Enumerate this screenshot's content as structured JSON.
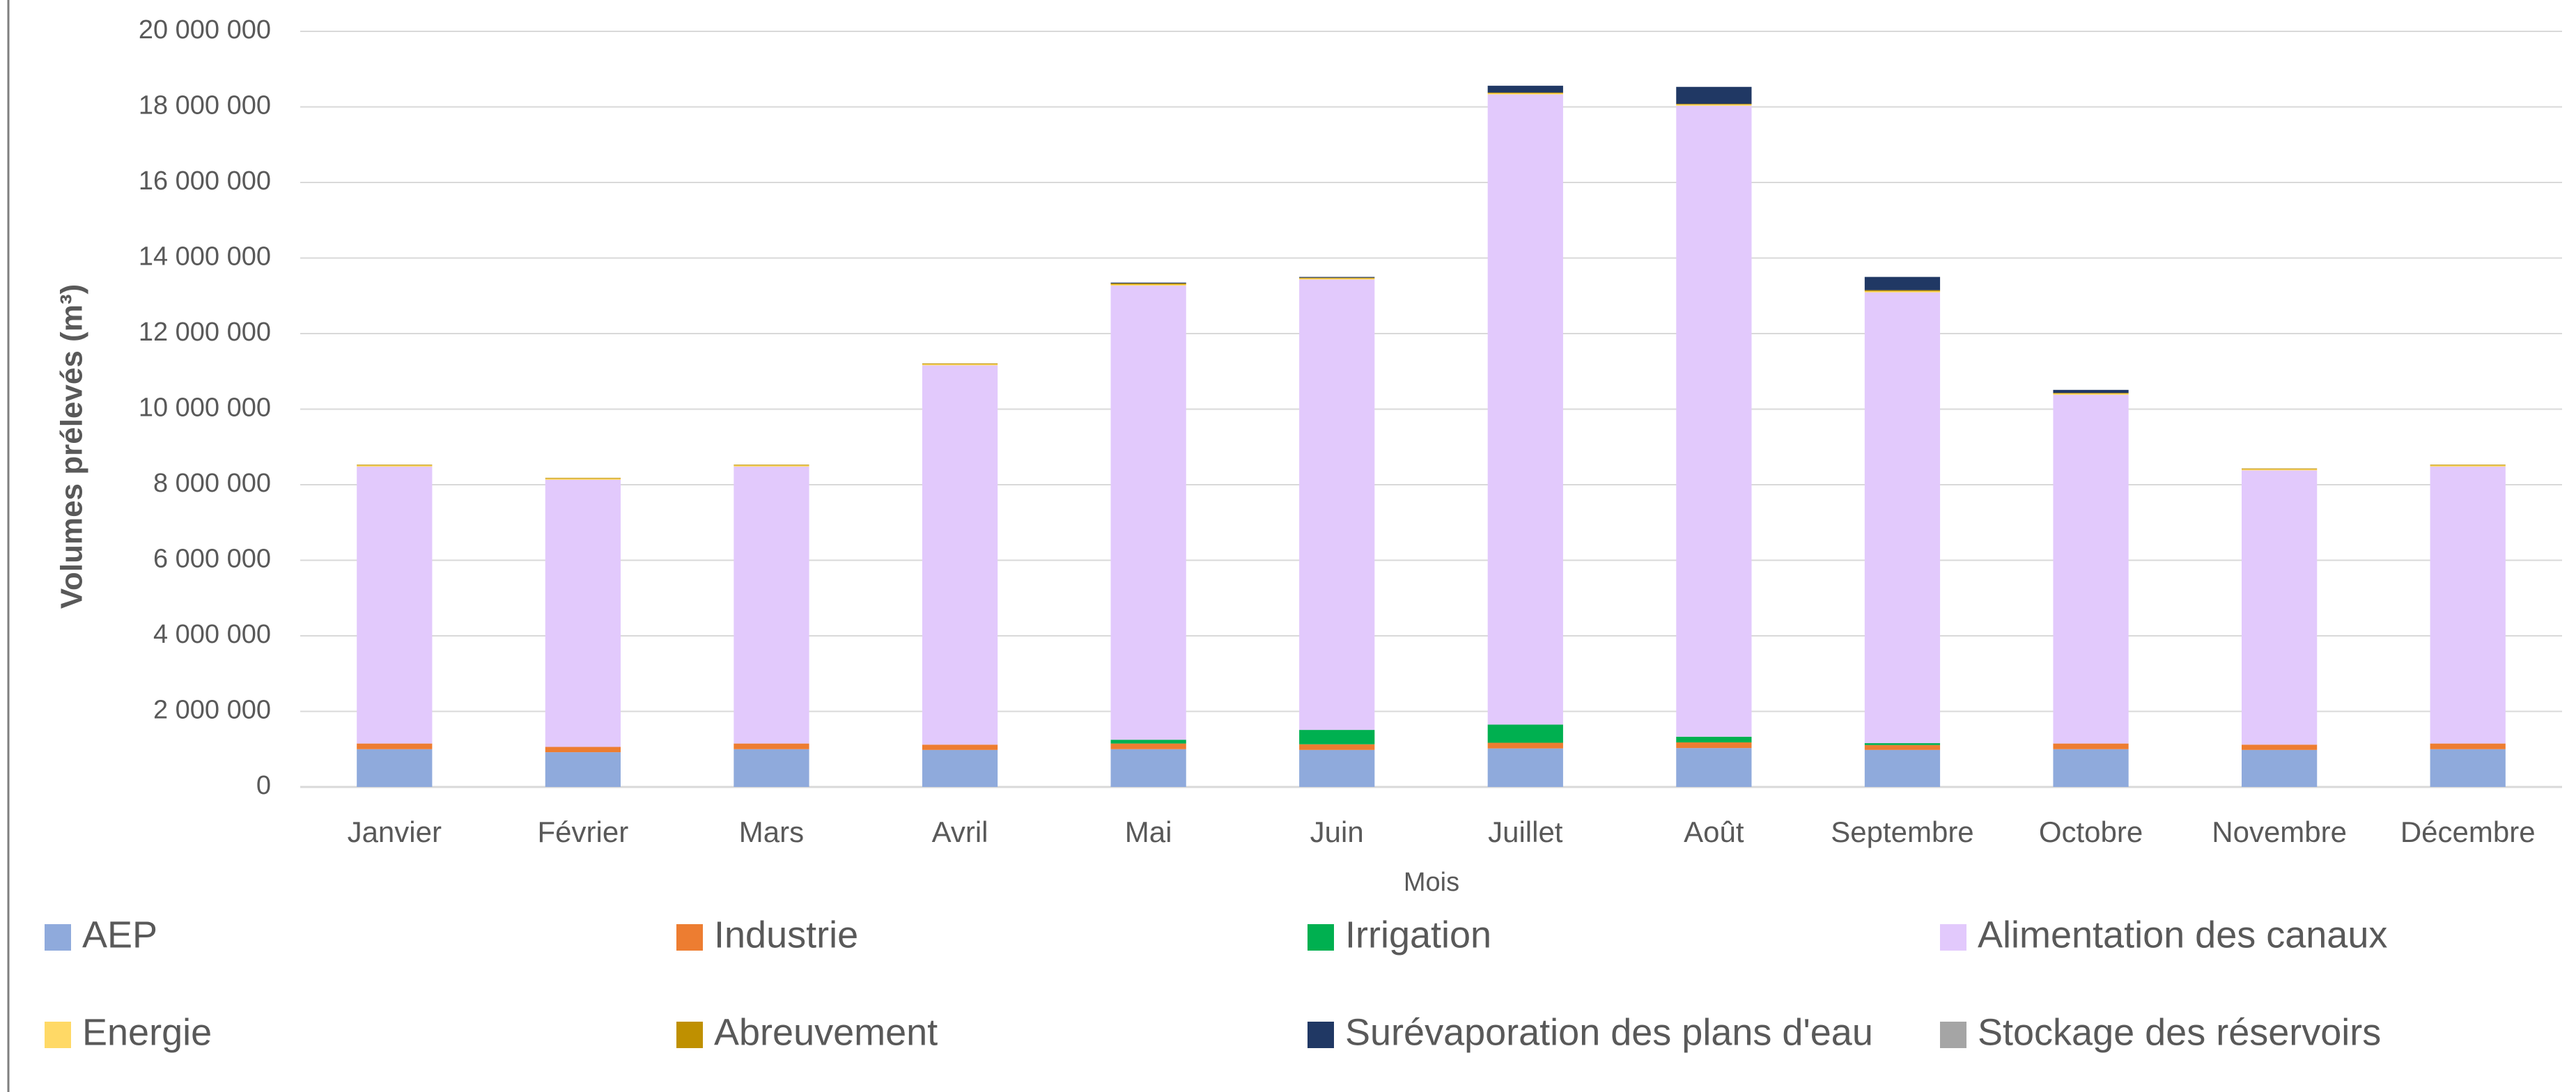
{
  "chart_data": {
    "type": "bar",
    "stacked": true,
    "x_label": "Mois",
    "y_label": "Volumes prélevés (m³)",
    "categories": [
      "Janvier",
      "Février",
      "Mars",
      "Avril",
      "Mai",
      "Juin",
      "Juillet",
      "Août",
      "Septembre",
      "Octobre",
      "Novembre",
      "Décembre"
    ],
    "series": [
      {
        "name": "AEP",
        "color": "#8faadc",
        "values": [
          1000000,
          920000,
          1000000,
          980000,
          1000000,
          980000,
          1020000,
          1030000,
          980000,
          1000000,
          980000,
          1000000
        ]
      },
      {
        "name": "Industrie",
        "color": "#ed7d31",
        "values": [
          150000,
          140000,
          150000,
          140000,
          150000,
          150000,
          150000,
          150000,
          130000,
          150000,
          140000,
          150000
        ]
      },
      {
        "name": "Irrigation",
        "color": "#00b050",
        "values": [
          0,
          0,
          0,
          0,
          100000,
          380000,
          480000,
          150000,
          50000,
          0,
          0,
          0
        ]
      },
      {
        "name": "Alimentation des canaux",
        "color": "#e2c9fc",
        "values": [
          7330000,
          7070000,
          7330000,
          10040000,
          12020000,
          11920000,
          16680000,
          16700000,
          11930000,
          9230000,
          7260000,
          7330000
        ]
      },
      {
        "name": "Energie",
        "color": "#ffd966",
        "values": [
          30000,
          30000,
          30000,
          30000,
          30000,
          30000,
          30000,
          30000,
          30000,
          30000,
          30000,
          30000
        ]
      },
      {
        "name": "Abreuvement",
        "color": "#bf9000",
        "values": [
          20000,
          20000,
          20000,
          20000,
          30000,
          20000,
          20000,
          20000,
          30000,
          20000,
          20000,
          20000
        ]
      },
      {
        "name": "Surévaporation des plans d'eau",
        "color": "#203864",
        "values": [
          0,
          0,
          0,
          0,
          20000,
          20000,
          180000,
          450000,
          350000,
          80000,
          0,
          0
        ]
      },
      {
        "name": "Stockage des réservoirs",
        "color": "#a5a5a5",
        "values": [
          0,
          0,
          0,
          0,
          0,
          0,
          0,
          0,
          0,
          0,
          0,
          0
        ]
      }
    ],
    "ylim": [
      0,
      20000000
    ],
    "yticks": [
      0,
      {
        "value": 2000000,
        "label": "2 000 000"
      },
      {
        "value": 4000000,
        "label": "4 000 000"
      },
      {
        "value": 6000000,
        "label": "6 000 000"
      },
      {
        "value": 8000000,
        "label": "8 000 000"
      },
      {
        "value": 10000000,
        "label": "10 000 000"
      },
      {
        "value": 12000000,
        "label": "12 000 000"
      },
      {
        "value": 14000000,
        "label": "14 000 000"
      },
      {
        "value": 16000000,
        "label": "16 000 000"
      },
      {
        "value": 18000000,
        "label": "18 000 000"
      },
      {
        "value": 20000000,
        "label": "20 000 000"
      }
    ],
    "grid": true,
    "legend": "bottom"
  }
}
